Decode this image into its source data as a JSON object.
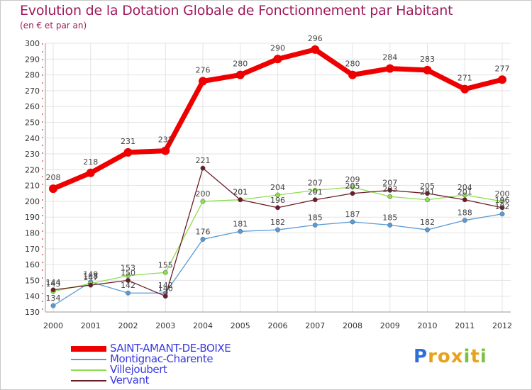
{
  "title": "Evolution de la Dotation Globale de Fonctionnement par Habitant",
  "subtitle": "(en € et par an)",
  "logo": {
    "text": "Proxiti",
    "letters": [
      "P",
      "r",
      "o",
      "x",
      "i",
      "t",
      "i"
    ],
    "colors": [
      "#2e6fd6",
      "#e8a11a",
      "#e8a11a",
      "#e8a11a",
      "#7cc242",
      "#e8a11a",
      "#7cc242"
    ]
  },
  "chart_data": {
    "type": "line",
    "categories": [
      "2000",
      "2001",
      "2002",
      "2003",
      "2004",
      "2005",
      "2006",
      "2007",
      "2008",
      "2009",
      "2010",
      "2011",
      "2012"
    ],
    "ylim": [
      130,
      300
    ],
    "yticks": [
      "130",
      "140",
      "150",
      "160",
      "170",
      "180",
      "190",
      "200",
      "210",
      "220",
      "230",
      "240",
      "250",
      "260",
      "270",
      "280",
      "290",
      "300"
    ],
    "series": [
      {
        "name": "SAINT-AMANT-DE-BOIXE",
        "color": "#ee0000",
        "values": [
          208,
          218,
          231,
          232,
          276,
          280,
          290,
          296,
          280,
          284,
          283,
          271,
          277
        ],
        "labels": [
          "208",
          "218",
          "231",
          "232",
          "276",
          "280",
          "290",
          "296",
          "280",
          "284",
          "283",
          "271",
          "277"
        ]
      },
      {
        "name": "Montignac-Charente",
        "color": "#5b9bd5",
        "values": [
          134,
          149,
          142,
          142,
          176,
          181,
          182,
          185,
          187,
          185,
          182,
          188,
          192
        ],
        "labels": [
          "134",
          "149",
          "142",
          "142",
          "176",
          "181",
          "182",
          "185",
          "187",
          "185",
          "182",
          "188",
          "192"
        ]
      },
      {
        "name": "Villejoubert",
        "color": "#8ede50",
        "values": [
          143,
          148,
          153,
          155,
          200,
          201,
          204,
          207,
          209,
          203,
          201,
          204,
          200
        ],
        "labels": [
          "143",
          "148",
          "153",
          "155",
          "200",
          "201",
          "204",
          "207",
          "209",
          "203",
          "201",
          "204",
          "200"
        ]
      },
      {
        "name": "Vervant",
        "color": "#6b1c26",
        "values": [
          144,
          147,
          150,
          140,
          221,
          201,
          196,
          201,
          205,
          207,
          205,
          201,
          196
        ],
        "labels": [
          "144",
          "147",
          "150",
          "140",
          "221",
          "201",
          "196",
          "201",
          "205",
          "207",
          "205",
          "201",
          "196"
        ]
      }
    ]
  }
}
